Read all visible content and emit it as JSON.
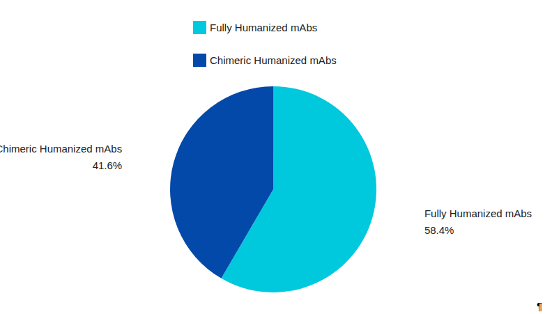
{
  "chart_data": {
    "type": "pie",
    "categories": [
      "Fully Humanized mAbs",
      "Chimeric Humanized mAbs"
    ],
    "values": [
      58.4,
      41.6
    ],
    "value_labels": [
      "58.4%",
      "41.6%"
    ],
    "colors": [
      "#00c9dd",
      "#0349aa"
    ],
    "data_labels": true,
    "legend": "top",
    "annotation": "¶"
  }
}
